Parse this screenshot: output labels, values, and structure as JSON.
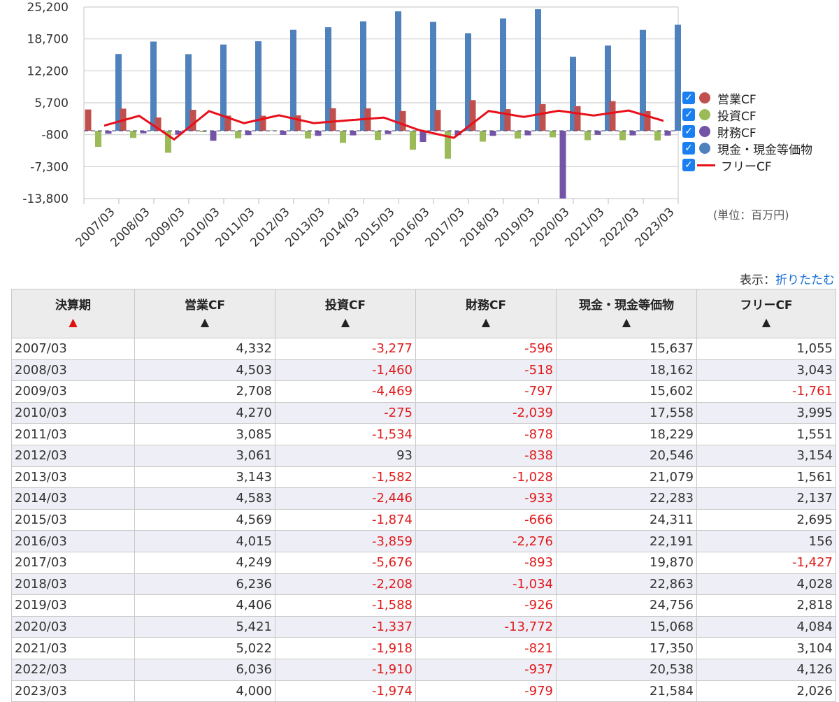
{
  "chart_data": {
    "type": "bar",
    "categories": [
      "2007/03",
      "2008/03",
      "2009/03",
      "2010/03",
      "2011/03",
      "2012/03",
      "2013/03",
      "2014/03",
      "2015/03",
      "2016/03",
      "2017/03",
      "2018/03",
      "2019/03",
      "2020/03",
      "2021/03",
      "2022/03",
      "2023/03"
    ],
    "series": [
      {
        "name": "営業CF",
        "type": "bar",
        "color": "#c0504d",
        "values": [
          4332,
          4503,
          2708,
          4270,
          3085,
          3061,
          3143,
          4583,
          4569,
          4015,
          4249,
          6236,
          4406,
          5421,
          5022,
          6036,
          4000
        ]
      },
      {
        "name": "投資CF",
        "type": "bar",
        "color": "#9bbb59",
        "values": [
          -3277,
          -1460,
          -4469,
          -275,
          -1534,
          93,
          -1582,
          -2446,
          -1874,
          -3859,
          -5676,
          -2208,
          -1588,
          -1337,
          -1918,
          -1910,
          -1974
        ]
      },
      {
        "name": "財務CF",
        "type": "bar",
        "color": "#7454a6",
        "values": [
          -596,
          -518,
          -797,
          -2039,
          -878,
          -838,
          -1028,
          -933,
          -666,
          -2276,
          -893,
          -1034,
          -926,
          -13772,
          -821,
          -937,
          -979
        ]
      },
      {
        "name": "現金・現金等価物",
        "type": "bar",
        "color": "#4f81bd",
        "values": [
          15637,
          18162,
          15602,
          17558,
          18229,
          20546,
          21079,
          22283,
          24311,
          22191,
          19870,
          22863,
          24756,
          15068,
          17350,
          20538,
          21584
        ]
      },
      {
        "name": "フリーCF",
        "type": "line",
        "color": "#e8101a",
        "values": [
          1055,
          3043,
          -1761,
          3995,
          1551,
          3154,
          1561,
          2137,
          2695,
          156,
          -1427,
          4028,
          2818,
          4084,
          3104,
          4126,
          2026
        ]
      }
    ],
    "yticks": [
      "25,200",
      "18,700",
      "12,200",
      "5,700",
      "-800",
      "-7,300",
      "-13,800"
    ],
    "ylim": [
      -13800,
      25200
    ],
    "grid": true,
    "legend": "right",
    "unit": "(単位：百万円)"
  },
  "display": {
    "label": "表示：",
    "link": "折りたたむ"
  },
  "table": {
    "headers": [
      "決算期",
      "営業CF",
      "投資CF",
      "財務CF",
      "現金・現金等価物",
      "フリーCF"
    ],
    "sort_arrow": "▲",
    "rows": [
      [
        "2007/03",
        "4,332",
        "-3,277",
        "-596",
        "15,637",
        "1,055"
      ],
      [
        "2008/03",
        "4,503",
        "-1,460",
        "-518",
        "18,162",
        "3,043"
      ],
      [
        "2009/03",
        "2,708",
        "-4,469",
        "-797",
        "15,602",
        "-1,761"
      ],
      [
        "2010/03",
        "4,270",
        "-275",
        "-2,039",
        "17,558",
        "3,995"
      ],
      [
        "2011/03",
        "3,085",
        "-1,534",
        "-878",
        "18,229",
        "1,551"
      ],
      [
        "2012/03",
        "3,061",
        "93",
        "-838",
        "20,546",
        "3,154"
      ],
      [
        "2013/03",
        "3,143",
        "-1,582",
        "-1,028",
        "21,079",
        "1,561"
      ],
      [
        "2014/03",
        "4,583",
        "-2,446",
        "-933",
        "22,283",
        "2,137"
      ],
      [
        "2015/03",
        "4,569",
        "-1,874",
        "-666",
        "24,311",
        "2,695"
      ],
      [
        "2016/03",
        "4,015",
        "-3,859",
        "-2,276",
        "22,191",
        "156"
      ],
      [
        "2017/03",
        "4,249",
        "-5,676",
        "-893",
        "19,870",
        "-1,427"
      ],
      [
        "2018/03",
        "6,236",
        "-2,208",
        "-1,034",
        "22,863",
        "4,028"
      ],
      [
        "2019/03",
        "4,406",
        "-1,588",
        "-926",
        "24,756",
        "2,818"
      ],
      [
        "2020/03",
        "5,421",
        "-1,337",
        "-13,772",
        "15,068",
        "4,084"
      ],
      [
        "2021/03",
        "5,022",
        "-1,918",
        "-821",
        "17,350",
        "3,104"
      ],
      [
        "2022/03",
        "6,036",
        "-1,910",
        "-937",
        "20,538",
        "4,126"
      ],
      [
        "2023/03",
        "4,000",
        "-1,974",
        "-979",
        "21,584",
        "2,026"
      ]
    ]
  }
}
